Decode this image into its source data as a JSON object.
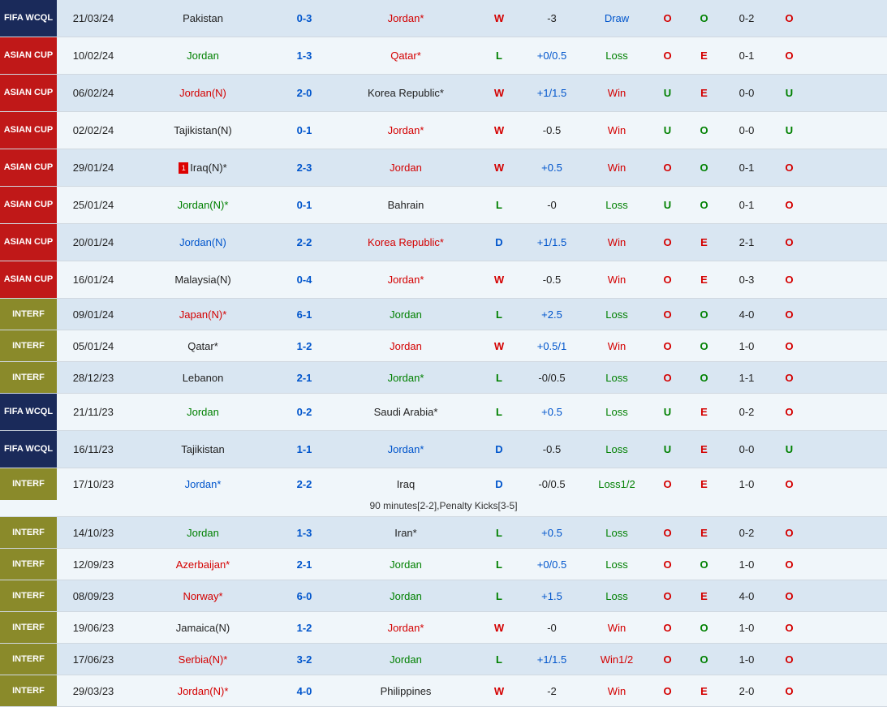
{
  "colors": {
    "red_text": "#d40000",
    "green_text": "#008000",
    "blue_text": "#0055cc",
    "black_text": "#222222",
    "row_odd": "#d9e6f2",
    "row_even": "#f0f6fa",
    "comp_fifa": "#1a2a5a",
    "comp_asian": "#c01818",
    "comp_interf": "#8a8a2a"
  },
  "rows": [
    {
      "comp": "FIFA WCQL",
      "comp_bg": "#1a2a5a",
      "tall": true,
      "date": "21/03/24",
      "home": "Pakistan",
      "home_c": "#222222",
      "score": "0-3",
      "score_c": "#0055cc",
      "away": "Jordan*",
      "away_c": "#d40000",
      "wdl": "W",
      "wdl_c": "#d40000",
      "hdp": "-3",
      "hdp_c": "#222222",
      "hdpres": "Draw",
      "hdpres_c": "#0055cc",
      "ou1": "O",
      "ou1_c": "#d40000",
      "oe": "O",
      "oe_c": "#008000",
      "ht": "0-2",
      "ou2": "O",
      "ou2_c": "#d40000",
      "bg": "odd"
    },
    {
      "comp": "ASIAN CUP",
      "comp_bg": "#c01818",
      "tall": true,
      "date": "10/02/24",
      "home": "Jordan",
      "home_c": "#008000",
      "score": "1-3",
      "score_c": "#0055cc",
      "away": "Qatar*",
      "away_c": "#d40000",
      "wdl": "L",
      "wdl_c": "#008000",
      "hdp": "+0/0.5",
      "hdp_c": "#0055cc",
      "hdpres": "Loss",
      "hdpres_c": "#008000",
      "ou1": "O",
      "ou1_c": "#d40000",
      "oe": "E",
      "oe_c": "#d40000",
      "ht": "0-1",
      "ou2": "O",
      "ou2_c": "#d40000",
      "bg": "even"
    },
    {
      "comp": "ASIAN CUP",
      "comp_bg": "#c01818",
      "tall": true,
      "date": "06/02/24",
      "home": "Jordan(N)",
      "home_c": "#d40000",
      "score": "2-0",
      "score_c": "#0055cc",
      "away": "Korea Republic*",
      "away_c": "#222222",
      "wdl": "W",
      "wdl_c": "#d40000",
      "hdp": "+1/1.5",
      "hdp_c": "#0055cc",
      "hdpres": "Win",
      "hdpres_c": "#d40000",
      "ou1": "U",
      "ou1_c": "#008000",
      "oe": "E",
      "oe_c": "#d40000",
      "ht": "0-0",
      "ou2": "U",
      "ou2_c": "#008000",
      "bg": "odd"
    },
    {
      "comp": "ASIAN CUP",
      "comp_bg": "#c01818",
      "tall": true,
      "date": "02/02/24",
      "home": "Tajikistan(N)",
      "home_c": "#222222",
      "score": "0-1",
      "score_c": "#0055cc",
      "away": "Jordan*",
      "away_c": "#d40000",
      "wdl": "W",
      "wdl_c": "#d40000",
      "hdp": "-0.5",
      "hdp_c": "#222222",
      "hdpres": "Win",
      "hdpres_c": "#d40000",
      "ou1": "U",
      "ou1_c": "#008000",
      "oe": "O",
      "oe_c": "#008000",
      "ht": "0-0",
      "ou2": "U",
      "ou2_c": "#008000",
      "bg": "even"
    },
    {
      "comp": "ASIAN CUP",
      "comp_bg": "#c01818",
      "tall": true,
      "date": "29/01/24",
      "home": "Iraq(N)*",
      "home_c": "#222222",
      "home_rc": "1",
      "score": "2-3",
      "score_c": "#0055cc",
      "away": "Jordan",
      "away_c": "#d40000",
      "wdl": "W",
      "wdl_c": "#d40000",
      "hdp": "+0.5",
      "hdp_c": "#0055cc",
      "hdpres": "Win",
      "hdpres_c": "#d40000",
      "ou1": "O",
      "ou1_c": "#d40000",
      "oe": "O",
      "oe_c": "#008000",
      "ht": "0-1",
      "ou2": "O",
      "ou2_c": "#d40000",
      "bg": "odd"
    },
    {
      "comp": "ASIAN CUP",
      "comp_bg": "#c01818",
      "tall": true,
      "date": "25/01/24",
      "home": "Jordan(N)*",
      "home_c": "#008000",
      "score": "0-1",
      "score_c": "#0055cc",
      "away": "Bahrain",
      "away_c": "#222222",
      "wdl": "L",
      "wdl_c": "#008000",
      "hdp": "-0",
      "hdp_c": "#222222",
      "hdpres": "Loss",
      "hdpres_c": "#008000",
      "ou1": "U",
      "ou1_c": "#008000",
      "oe": "O",
      "oe_c": "#008000",
      "ht": "0-1",
      "ou2": "O",
      "ou2_c": "#d40000",
      "bg": "even"
    },
    {
      "comp": "ASIAN CUP",
      "comp_bg": "#c01818",
      "tall": true,
      "date": "20/01/24",
      "home": "Jordan(N)",
      "home_c": "#0055cc",
      "score": "2-2",
      "score_c": "#0055cc",
      "away": "Korea Republic*",
      "away_c": "#d40000",
      "wdl": "D",
      "wdl_c": "#0055cc",
      "hdp": "+1/1.5",
      "hdp_c": "#0055cc",
      "hdpres": "Win",
      "hdpres_c": "#d40000",
      "ou1": "O",
      "ou1_c": "#d40000",
      "oe": "E",
      "oe_c": "#d40000",
      "ht": "2-1",
      "ou2": "O",
      "ou2_c": "#d40000",
      "bg": "odd"
    },
    {
      "comp": "ASIAN CUP",
      "comp_bg": "#c01818",
      "tall": true,
      "date": "16/01/24",
      "home": "Malaysia(N)",
      "home_c": "#222222",
      "score": "0-4",
      "score_c": "#0055cc",
      "away": "Jordan*",
      "away_c": "#d40000",
      "wdl": "W",
      "wdl_c": "#d40000",
      "hdp": "-0.5",
      "hdp_c": "#222222",
      "hdpres": "Win",
      "hdpres_c": "#d40000",
      "ou1": "O",
      "ou1_c": "#d40000",
      "oe": "E",
      "oe_c": "#d40000",
      "ht": "0-3",
      "ou2": "O",
      "ou2_c": "#d40000",
      "bg": "even"
    },
    {
      "comp": "INTERF",
      "comp_bg": "#8a8a2a",
      "date": "09/01/24",
      "home": "Japan(N)*",
      "home_c": "#d40000",
      "score": "6-1",
      "score_c": "#0055cc",
      "away": "Jordan",
      "away_c": "#008000",
      "wdl": "L",
      "wdl_c": "#008000",
      "hdp": "+2.5",
      "hdp_c": "#0055cc",
      "hdpres": "Loss",
      "hdpres_c": "#008000",
      "ou1": "O",
      "ou1_c": "#d40000",
      "oe": "O",
      "oe_c": "#008000",
      "ht": "4-0",
      "ou2": "O",
      "ou2_c": "#d40000",
      "bg": "odd"
    },
    {
      "comp": "INTERF",
      "comp_bg": "#8a8a2a",
      "date": "05/01/24",
      "home": "Qatar*",
      "home_c": "#222222",
      "score": "1-2",
      "score_c": "#0055cc",
      "away": "Jordan",
      "away_c": "#d40000",
      "wdl": "W",
      "wdl_c": "#d40000",
      "hdp": "+0.5/1",
      "hdp_c": "#0055cc",
      "hdpres": "Win",
      "hdpres_c": "#d40000",
      "ou1": "O",
      "ou1_c": "#d40000",
      "oe": "O",
      "oe_c": "#008000",
      "ht": "1-0",
      "ou2": "O",
      "ou2_c": "#d40000",
      "bg": "even"
    },
    {
      "comp": "INTERF",
      "comp_bg": "#8a8a2a",
      "date": "28/12/23",
      "home": "Lebanon",
      "home_c": "#222222",
      "score": "2-1",
      "score_c": "#0055cc",
      "away": "Jordan*",
      "away_c": "#008000",
      "wdl": "L",
      "wdl_c": "#008000",
      "hdp": "-0/0.5",
      "hdp_c": "#222222",
      "hdpres": "Loss",
      "hdpres_c": "#008000",
      "ou1": "O",
      "ou1_c": "#d40000",
      "oe": "O",
      "oe_c": "#008000",
      "ht": "1-1",
      "ou2": "O",
      "ou2_c": "#d40000",
      "bg": "odd"
    },
    {
      "comp": "FIFA WCQL",
      "comp_bg": "#1a2a5a",
      "tall": true,
      "date": "21/11/23",
      "home": "Jordan",
      "home_c": "#008000",
      "score": "0-2",
      "score_c": "#0055cc",
      "away": "Saudi Arabia*",
      "away_c": "#222222",
      "wdl": "L",
      "wdl_c": "#008000",
      "hdp": "+0.5",
      "hdp_c": "#0055cc",
      "hdpres": "Loss",
      "hdpres_c": "#008000",
      "ou1": "U",
      "ou1_c": "#008000",
      "oe": "E",
      "oe_c": "#d40000",
      "ht": "0-2",
      "ou2": "O",
      "ou2_c": "#d40000",
      "bg": "even"
    },
    {
      "comp": "FIFA WCQL",
      "comp_bg": "#1a2a5a",
      "tall": true,
      "date": "16/11/23",
      "home": "Tajikistan",
      "home_c": "#222222",
      "score": "1-1",
      "score_c": "#0055cc",
      "away": "Jordan*",
      "away_c": "#0055cc",
      "wdl": "D",
      "wdl_c": "#0055cc",
      "hdp": "-0.5",
      "hdp_c": "#222222",
      "hdpres": "Loss",
      "hdpres_c": "#008000",
      "ou1": "U",
      "ou1_c": "#008000",
      "oe": "E",
      "oe_c": "#d40000",
      "ht": "0-0",
      "ou2": "U",
      "ou2_c": "#008000",
      "bg": "odd"
    },
    {
      "comp": "INTERF",
      "comp_bg": "#8a8a2a",
      "date": "17/10/23",
      "extra": true,
      "note": "90 minutes[2-2],Penalty Kicks[3-5]",
      "home": "Jordan*",
      "home_c": "#0055cc",
      "score": "2-2",
      "score_c": "#0055cc",
      "away": "Iraq",
      "away_c": "#222222",
      "wdl": "D",
      "wdl_c": "#0055cc",
      "hdp": "-0/0.5",
      "hdp_c": "#222222",
      "hdpres": "Loss1/2",
      "hdpres_c": "#008000",
      "ou1": "O",
      "ou1_c": "#d40000",
      "oe": "E",
      "oe_c": "#d40000",
      "ht": "1-0",
      "ou2": "O",
      "ou2_c": "#d40000",
      "bg": "even"
    },
    {
      "comp": "INTERF",
      "comp_bg": "#8a8a2a",
      "date": "14/10/23",
      "home": "Jordan",
      "home_c": "#008000",
      "score": "1-3",
      "score_c": "#0055cc",
      "away": "Iran*",
      "away_c": "#222222",
      "wdl": "L",
      "wdl_c": "#008000",
      "hdp": "+0.5",
      "hdp_c": "#0055cc",
      "hdpres": "Loss",
      "hdpres_c": "#008000",
      "ou1": "O",
      "ou1_c": "#d40000",
      "oe": "E",
      "oe_c": "#d40000",
      "ht": "0-2",
      "ou2": "O",
      "ou2_c": "#d40000",
      "bg": "odd"
    },
    {
      "comp": "INTERF",
      "comp_bg": "#8a8a2a",
      "date": "12/09/23",
      "home": "Azerbaijan*",
      "home_c": "#d40000",
      "score": "2-1",
      "score_c": "#0055cc",
      "away": "Jordan",
      "away_c": "#008000",
      "wdl": "L",
      "wdl_c": "#008000",
      "hdp": "+0/0.5",
      "hdp_c": "#0055cc",
      "hdpres": "Loss",
      "hdpres_c": "#008000",
      "ou1": "O",
      "ou1_c": "#d40000",
      "oe": "O",
      "oe_c": "#008000",
      "ht": "1-0",
      "ou2": "O",
      "ou2_c": "#d40000",
      "bg": "even"
    },
    {
      "comp": "INTERF",
      "comp_bg": "#8a8a2a",
      "date": "08/09/23",
      "home": "Norway*",
      "home_c": "#d40000",
      "score": "6-0",
      "score_c": "#0055cc",
      "away": "Jordan",
      "away_c": "#008000",
      "wdl": "L",
      "wdl_c": "#008000",
      "hdp": "+1.5",
      "hdp_c": "#0055cc",
      "hdpres": "Loss",
      "hdpres_c": "#008000",
      "ou1": "O",
      "ou1_c": "#d40000",
      "oe": "E",
      "oe_c": "#d40000",
      "ht": "4-0",
      "ou2": "O",
      "ou2_c": "#d40000",
      "bg": "odd"
    },
    {
      "comp": "INTERF",
      "comp_bg": "#8a8a2a",
      "date": "19/06/23",
      "home": "Jamaica(N)",
      "home_c": "#222222",
      "score": "1-2",
      "score_c": "#0055cc",
      "away": "Jordan*",
      "away_c": "#d40000",
      "wdl": "W",
      "wdl_c": "#d40000",
      "hdp": "-0",
      "hdp_c": "#222222",
      "hdpres": "Win",
      "hdpres_c": "#d40000",
      "ou1": "O",
      "ou1_c": "#d40000",
      "oe": "O",
      "oe_c": "#008000",
      "ht": "1-0",
      "ou2": "O",
      "ou2_c": "#d40000",
      "bg": "even"
    },
    {
      "comp": "INTERF",
      "comp_bg": "#8a8a2a",
      "date": "17/06/23",
      "home": "Serbia(N)*",
      "home_c": "#d40000",
      "score": "3-2",
      "score_c": "#0055cc",
      "away": "Jordan",
      "away_c": "#008000",
      "wdl": "L",
      "wdl_c": "#008000",
      "hdp": "+1/1.5",
      "hdp_c": "#0055cc",
      "hdpres": "Win1/2",
      "hdpres_c": "#d40000",
      "ou1": "O",
      "ou1_c": "#d40000",
      "oe": "O",
      "oe_c": "#008000",
      "ht": "1-0",
      "ou2": "O",
      "ou2_c": "#d40000",
      "bg": "odd"
    },
    {
      "comp": "INTERF",
      "comp_bg": "#8a8a2a",
      "date": "29/03/23",
      "home": "Jordan(N)*",
      "home_c": "#d40000",
      "score": "4-0",
      "score_c": "#0055cc",
      "away": "Philippines",
      "away_c": "#222222",
      "wdl": "W",
      "wdl_c": "#d40000",
      "hdp": "-2",
      "hdp_c": "#222222",
      "hdpres": "Win",
      "hdpres_c": "#d40000",
      "ou1": "O",
      "ou1_c": "#d40000",
      "oe": "E",
      "oe_c": "#d40000",
      "ht": "2-0",
      "ou2": "O",
      "ou2_c": "#d40000",
      "bg": "even"
    }
  ]
}
